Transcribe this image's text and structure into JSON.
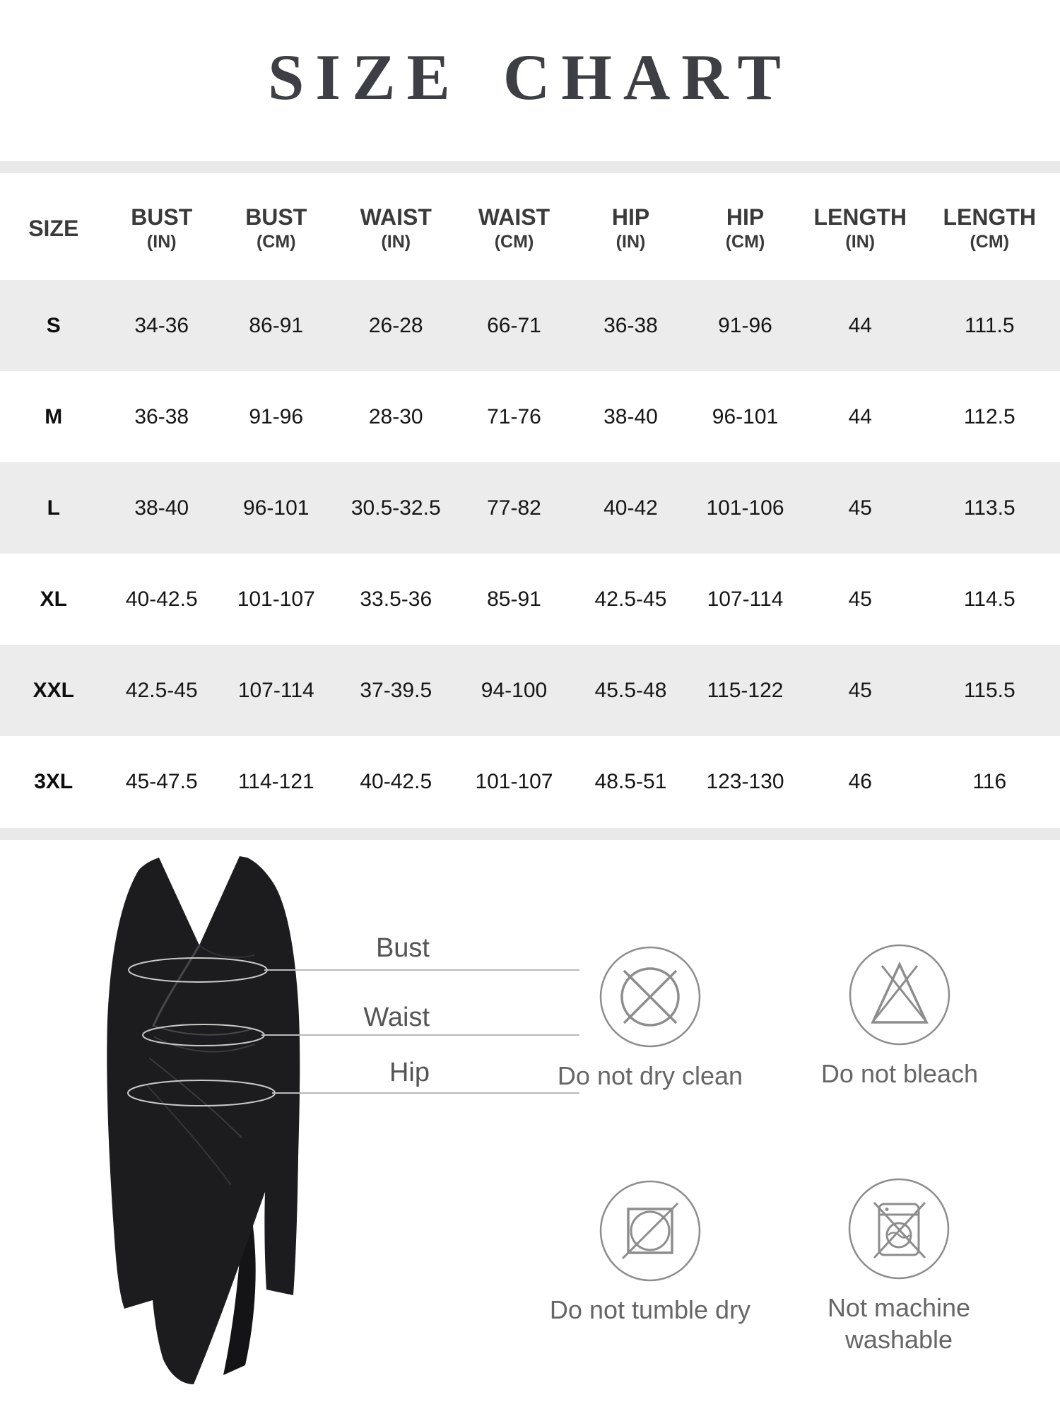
{
  "title": "SIZE CHART",
  "table": {
    "columns": [
      {
        "label": "SIZE",
        "unit": ""
      },
      {
        "label": "BUST",
        "unit": "(IN)"
      },
      {
        "label": "BUST",
        "unit": "(CM)"
      },
      {
        "label": "WAIST",
        "unit": "(IN)"
      },
      {
        "label": "WAIST",
        "unit": "(CM)"
      },
      {
        "label": "HIP",
        "unit": "(IN)"
      },
      {
        "label": "HIP",
        "unit": "(CM)"
      },
      {
        "label": "LENGTH",
        "unit": "(IN)"
      },
      {
        "label": "LENGTH",
        "unit": "(CM)"
      }
    ],
    "rows": [
      {
        "size": "S",
        "values": [
          "34-36",
          "86-91",
          "26-28",
          "66-71",
          "36-38",
          "91-96",
          "44",
          "111.5"
        ]
      },
      {
        "size": "M",
        "values": [
          "36-38",
          "91-96",
          "28-30",
          "71-76",
          "38-40",
          "96-101",
          "44",
          "112.5"
        ]
      },
      {
        "size": "L",
        "values": [
          "38-40",
          "96-101",
          "30.5-32.5",
          "77-82",
          "40-42",
          "101-106",
          "45",
          "113.5"
        ]
      },
      {
        "size": "XL",
        "values": [
          "40-42.5",
          "101-107",
          "33.5-36",
          "85-91",
          "42.5-45",
          "107-114",
          "45",
          "114.5"
        ]
      },
      {
        "size": "XXL",
        "values": [
          "42.5-45",
          "107-114",
          "37-39.5",
          "94-100",
          "45.5-48",
          "115-122",
          "45",
          "115.5"
        ]
      },
      {
        "size": "3XL",
        "values": [
          "45-47.5",
          "114-121",
          "40-42.5",
          "101-107",
          "48.5-51",
          "123-130",
          "46",
          "116"
        ]
      }
    ]
  },
  "chart_data": {
    "type": "table",
    "title": "SIZE CHART",
    "columns": [
      "SIZE",
      "BUST (IN)",
      "BUST (CM)",
      "WAIST (IN)",
      "WAIST (CM)",
      "HIP (IN)",
      "HIP (CM)",
      "LENGTH (IN)",
      "LENGTH (CM)"
    ],
    "rows": [
      [
        "S",
        "34-36",
        "86-91",
        "26-28",
        "66-71",
        "36-38",
        "91-96",
        "44",
        "111.5"
      ],
      [
        "M",
        "36-38",
        "91-96",
        "28-30",
        "71-76",
        "38-40",
        "96-101",
        "44",
        "112.5"
      ],
      [
        "L",
        "38-40",
        "96-101",
        "30.5-32.5",
        "77-82",
        "40-42",
        "101-106",
        "45",
        "113.5"
      ],
      [
        "XL",
        "40-42.5",
        "101-107",
        "33.5-36",
        "85-91",
        "42.5-45",
        "107-114",
        "45",
        "114.5"
      ],
      [
        "XXL",
        "42.5-45",
        "107-114",
        "37-39.5",
        "94-100",
        "45.5-48",
        "115-122",
        "45",
        "115.5"
      ],
      [
        "3XL",
        "45-47.5",
        "114-121",
        "40-42.5",
        "101-107",
        "48.5-51",
        "123-130",
        "46",
        "116"
      ]
    ]
  },
  "measurements": {
    "bust": "Bust",
    "waist": "Waist",
    "hip": "Hip"
  },
  "care": [
    {
      "icon": "do-not-dry-clean-icon",
      "label": "Do not dry clean"
    },
    {
      "icon": "do-not-bleach-icon",
      "label": "Do not bleach"
    },
    {
      "icon": "do-not-tumble-dry-icon",
      "label": "Do not tumble dry"
    },
    {
      "icon": "not-machine-washable-icon",
      "label": "Not machine washable"
    }
  ],
  "colors": {
    "title_text": "#3d3f45",
    "divider_strip": "#e9e9e9",
    "row_shade": "#ececec",
    "header_text": "#3a3a3a",
    "cell_text": "#161616",
    "dress_fill": "#1c1c1f",
    "measure_line": "#b9b9b9",
    "care_stroke": "#8d8d8d",
    "care_text": "#666666"
  }
}
